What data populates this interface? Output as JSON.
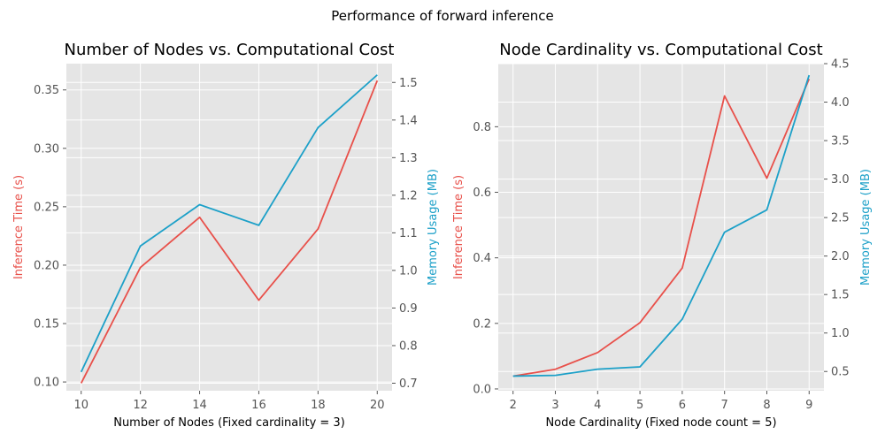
{
  "suptitle": "Performance of forward inference",
  "colors": {
    "time": "#e8504a",
    "memory": "#1ca0c8",
    "background": "#e5e5e5",
    "grid": "#ffffff"
  },
  "chart_data": [
    {
      "type": "line",
      "title": "Number of Nodes vs. Computational Cost",
      "xlabel": "Number of Nodes (Fixed cardinality = 3)",
      "ylabel_left": "Inference Time (s)",
      "ylabel_right": "Memory Usage (MB)",
      "x": [
        10,
        12,
        14,
        16,
        18,
        20
      ],
      "xlim": [
        9.5,
        20.5
      ],
      "xticks": [
        10,
        12,
        14,
        16,
        18,
        20
      ],
      "ylim_left": [
        0.0925,
        0.3725
      ],
      "yticks_left": [
        "0.10",
        "0.15",
        "0.20",
        "0.25",
        "0.30",
        "0.35"
      ],
      "ylim_right": [
        0.68,
        1.55
      ],
      "yticks_right": [
        "0.7",
        "0.8",
        "0.9",
        "1.0",
        "1.1",
        "1.2",
        "1.3",
        "1.4",
        "1.5"
      ],
      "grid": true,
      "series": [
        {
          "axis": "left",
          "color": "#e8504a",
          "values": [
            0.099,
            0.198,
            0.241,
            0.17,
            0.231,
            0.358
          ]
        },
        {
          "axis": "right",
          "color": "#1ca0c8",
          "values": [
            0.73,
            1.065,
            1.175,
            1.12,
            1.38,
            1.52
          ]
        }
      ]
    },
    {
      "type": "line",
      "title": "Node Cardinality vs. Computational Cost",
      "xlabel": "Node Cardinality (Fixed node count = 5)",
      "ylabel_left": "Inference Time (s)",
      "ylabel_right": "Memory Usage (MB)",
      "x": [
        2,
        3,
        4,
        5,
        6,
        7,
        8,
        9
      ],
      "xlim": [
        1.65,
        9.35
      ],
      "xticks": [
        2,
        3,
        4,
        5,
        6,
        7,
        8,
        9
      ],
      "ylim_left": [
        -0.0055,
        0.9925
      ],
      "yticks_left": [
        "0.0",
        "0.2",
        "0.4",
        "0.6",
        "0.8"
      ],
      "ylim_right": [
        0.25,
        4.5
      ],
      "yticks_right": [
        "0.5",
        "1.0",
        "1.5",
        "2.0",
        "2.5",
        "3.0",
        "3.5",
        "4.0",
        "4.5"
      ],
      "grid": true,
      "series": [
        {
          "axis": "left",
          "color": "#e8504a",
          "values": [
            0.039,
            0.06,
            0.111,
            0.202,
            0.369,
            0.894,
            0.643,
            0.946
          ]
        },
        {
          "axis": "right",
          "color": "#1ca0c8",
          "values": [
            0.44,
            0.45,
            0.53,
            0.56,
            1.18,
            2.31,
            2.6,
            4.35
          ]
        }
      ]
    }
  ]
}
